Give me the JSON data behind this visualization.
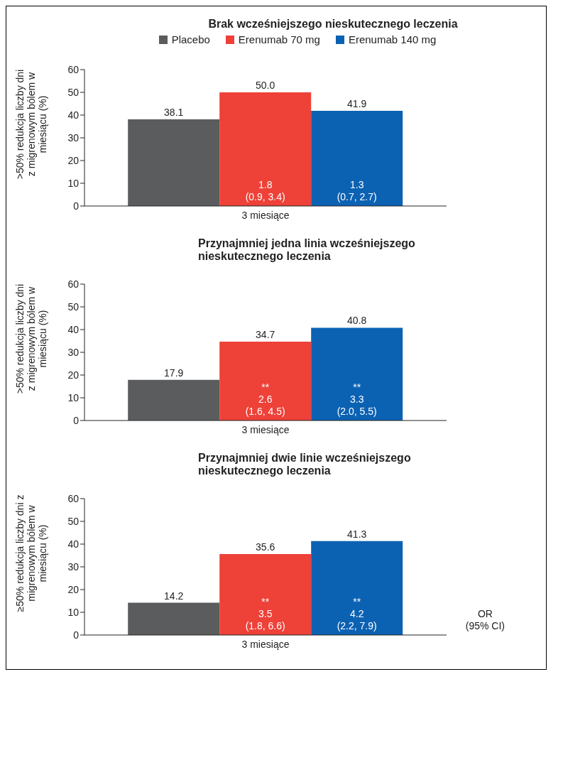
{
  "chart_data": [
    {
      "type": "bar",
      "title": "Brak wcześniejszego nieskutecznego leczenia",
      "ylabel": ">50% redukcja liczby dni z migrenowym bólem w miesiącu (%)",
      "categories": [
        "3 miesiące"
      ],
      "series": [
        {
          "name": "Placebo",
          "color": "#5b5c5e",
          "values": [
            38.1
          ],
          "value_labels": [
            "38.1"
          ]
        },
        {
          "name": "Erenumab 70 mg",
          "color": "#ee4138",
          "values": [
            50.0
          ],
          "value_labels": [
            "50.0"
          ]
        },
        {
          "name": "Erenumab 140 mg",
          "color": "#0b62b3",
          "values": [
            41.9
          ],
          "value_labels": [
            "41.9"
          ]
        }
      ],
      "ylim": [
        0,
        60
      ],
      "yticks": [
        0,
        10,
        20,
        30,
        40,
        50,
        60
      ],
      "grid": false,
      "legend": "top",
      "annotations": [
        "1.8\n(0.9, 3.4)",
        "1.3\n(0.7, 2.7)"
      ]
    },
    {
      "type": "bar",
      "title": "Przynajmniej jedna linia wcześniejszego nieskutecznego leczenia",
      "ylabel": ">50% redukcja liczby dni z migrenowym bólem w miesiącu (%)",
      "categories": [
        "3 miesiące"
      ],
      "series": [
        {
          "color": "#5b5c5e",
          "values": [
            17.9
          ],
          "value_labels": [
            "17.9"
          ]
        },
        {
          "color": "#ee4138",
          "values": [
            34.7
          ],
          "value_labels": [
            "34.7"
          ]
        },
        {
          "color": "#0b62b3",
          "values": [
            40.8
          ],
          "value_labels": [
            "40.8"
          ]
        }
      ],
      "ylim": [
        0,
        60
      ],
      "yticks": [
        0,
        10,
        20,
        30,
        40,
        50,
        60
      ],
      "grid": false,
      "legend": false,
      "annotations": [
        "**\n2.6\n(1.6, 4.5)",
        "**\n3.3\n(2.0, 5.5)"
      ]
    },
    {
      "type": "bar",
      "title": "Przynajmniej dwie linie wcześniejszego nieskutecznego leczenia",
      "ylabel": "≥50% redukcja liczby dni z migrenowym bólem w miesiącu (%)",
      "categories": [
        "3 miesiące"
      ],
      "series": [
        {
          "color": "#5b5c5e",
          "values": [
            14.2
          ],
          "value_labels": [
            "14.2"
          ]
        },
        {
          "color": "#ee4138",
          "values": [
            35.6
          ],
          "value_labels": [
            "35.6"
          ]
        },
        {
          "color": "#0b62b3",
          "values": [
            41.3
          ],
          "value_labels": [
            "41.3"
          ]
        }
      ],
      "ylim": [
        0,
        60
      ],
      "yticks": [
        0,
        10,
        20,
        30,
        40,
        50,
        60
      ],
      "grid": false,
      "legend": false,
      "annotations": [
        "**\n3.5\n(1.8, 6.6)",
        "**\n4.2\n(2.2, 7.9)",
        "OR\n(95% CI)"
      ]
    }
  ]
}
